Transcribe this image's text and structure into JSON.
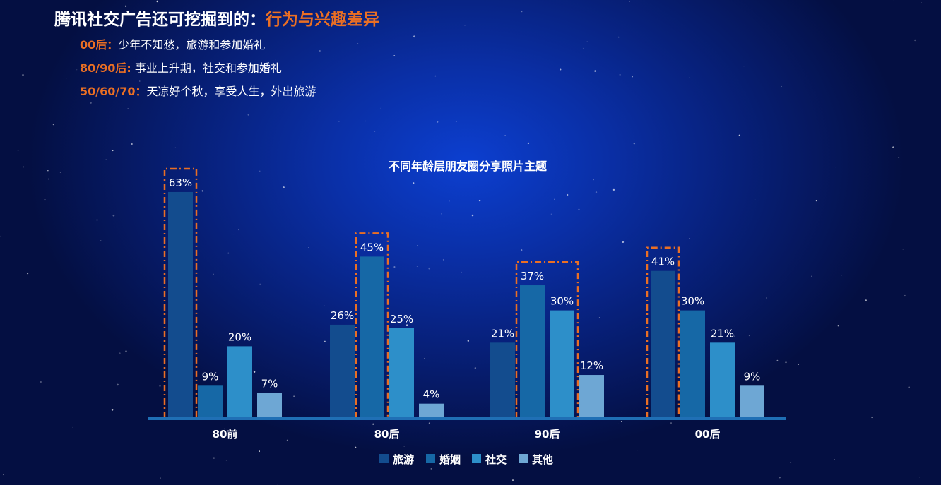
{
  "header": {
    "title_prefix": "腾讯社交广告还可挖掘到的：",
    "title_highlight": "行为与兴趣差异"
  },
  "notes": [
    {
      "key": "00后：",
      "text": "少年不知愁，旅游和参加婚礼"
    },
    {
      "key": "80/90后:",
      "text": " 事业上升期，社交和参加婚礼"
    },
    {
      "key": "50/60/70：",
      "text": "天凉好个秋，享受人生，外出旅游"
    }
  ],
  "chart_data": {
    "type": "bar",
    "title": "不同年龄层朋友圈分享照片主题",
    "categories": [
      "80前",
      "80后",
      "90后",
      "00后"
    ],
    "series": [
      {
        "name": "旅游",
        "values": [
          63,
          26,
          21,
          41
        ],
        "color": "#134c8e"
      },
      {
        "name": "婚姻",
        "values": [
          9,
          45,
          37,
          30
        ],
        "color": "#1668a6"
      },
      {
        "name": "社交",
        "values": [
          20,
          25,
          30,
          21
        ],
        "color": "#2d8fc9"
      },
      {
        "name": "其他",
        "values": [
          7,
          4,
          12,
          9
        ],
        "color": "#6ea7d4"
      }
    ],
    "value_suffix": "%",
    "highlighted": [
      {
        "category": "80前",
        "series": "旅游"
      },
      {
        "category": "80后",
        "series": "婚姻"
      },
      {
        "category": "90后",
        "series": [
          "婚姻",
          "社交"
        ]
      },
      {
        "category": "00后",
        "series": "旅游"
      }
    ],
    "highlight_color": "#ea6f24",
    "axis_color": "#1f6fb5",
    "grid": false,
    "legend_position": "bottom"
  }
}
